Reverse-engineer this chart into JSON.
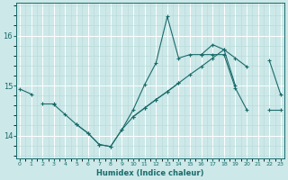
{
  "xlabel": "Humidex (Indice chaleur)",
  "x": [
    0,
    1,
    2,
    3,
    4,
    5,
    6,
    7,
    8,
    9,
    10,
    11,
    12,
    13,
    14,
    15,
    16,
    17,
    18,
    19,
    20,
    21,
    22,
    23
  ],
  "line_top": [
    14.93,
    14.83,
    null,
    null,
    null,
    null,
    null,
    null,
    null,
    null,
    14.38,
    14.55,
    14.72,
    14.88,
    15.05,
    15.22,
    15.38,
    15.55,
    15.72,
    15.55,
    15.38,
    null,
    15.5,
    14.82
  ],
  "line_mid": [
    null,
    null,
    14.65,
    14.65,
    null,
    14.22,
    14.05,
    13.82,
    13.78,
    14.12,
    14.52,
    15.02,
    15.45,
    16.38,
    15.55,
    15.62,
    15.62,
    15.82,
    15.72,
    15.0,
    null,
    null,
    null,
    null
  ],
  "line_bot": [
    null,
    null,
    null,
    14.62,
    14.42,
    14.22,
    14.05,
    13.82,
    13.78,
    14.12,
    14.38,
    14.55,
    14.72,
    14.88,
    15.05,
    null,
    15.62,
    15.62,
    15.62,
    14.95,
    14.52,
    null,
    14.52,
    14.52
  ],
  "ylim": [
    13.55,
    16.65
  ],
  "yticks": [
    14,
    15,
    16
  ],
  "xlim": [
    -0.3,
    23.3
  ],
  "bg_color": "#cce8e8",
  "line_color": "#1a6b6b",
  "grid_major_color": "#ffffff",
  "grid_minor_color": "#b8d8d8"
}
